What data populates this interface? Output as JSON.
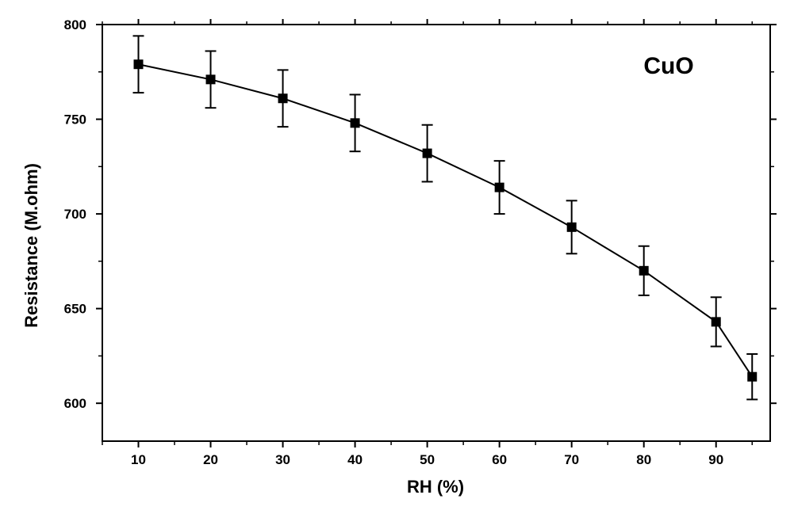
{
  "chart_data": {
    "type": "line",
    "title": "",
    "xlabel": "RH (%)",
    "ylabel": "Resistance (M.ohm)",
    "annotation": "CuO",
    "xlim": [
      5,
      97.5
    ],
    "ylim": [
      580,
      800
    ],
    "x_ticks": [
      10,
      20,
      30,
      40,
      50,
      60,
      70,
      80,
      90
    ],
    "y_ticks": [
      600,
      650,
      700,
      750,
      800
    ],
    "grid": false,
    "legend": "none",
    "marker": "square",
    "line_color": "#000000",
    "series": [
      {
        "x": [
          10,
          20,
          30,
          40,
          50,
          60,
          70,
          80,
          90,
          95
        ],
        "values": [
          779,
          771,
          761,
          748,
          732,
          714,
          693,
          670,
          643,
          614
        ],
        "error": [
          15,
          15,
          15,
          15,
          15,
          14,
          14,
          13,
          13,
          12
        ]
      }
    ]
  }
}
